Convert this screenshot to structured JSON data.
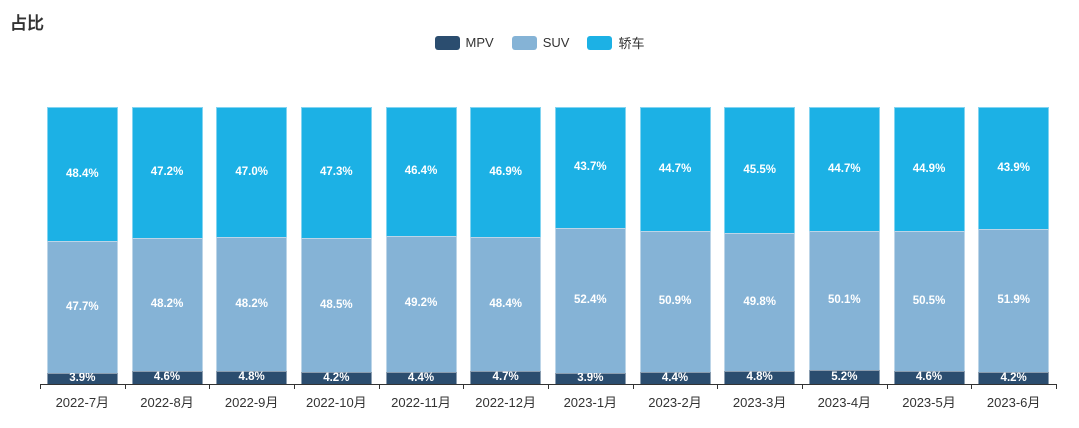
{
  "title": "占比",
  "legend": {
    "items": [
      {
        "label": "MPV",
        "color": "#2b4d6f"
      },
      {
        "label": "SUV",
        "color": "#85b3d6"
      },
      {
        "label": "轿车",
        "color": "#1cb1e5"
      }
    ]
  },
  "chart_data": {
    "type": "bar",
    "stacked": true,
    "title": "占比",
    "categories": [
      "2022-7月",
      "2022-8月",
      "2022-9月",
      "2022-10月",
      "2022-11月",
      "2022-12月",
      "2023-1月",
      "2023-2月",
      "2023-3月",
      "2023-4月",
      "2023-5月",
      "2023-6月"
    ],
    "series": [
      {
        "name": "MPV",
        "color": "#2b4d6f",
        "values": [
          3.9,
          4.6,
          4.8,
          4.2,
          4.4,
          4.7,
          3.9,
          4.4,
          4.8,
          5.2,
          4.6,
          4.2
        ]
      },
      {
        "name": "SUV",
        "color": "#85b3d6",
        "values": [
          47.7,
          48.2,
          48.2,
          48.5,
          49.2,
          48.4,
          52.4,
          50.9,
          49.8,
          50.1,
          50.5,
          51.9
        ]
      },
      {
        "name": "轿车",
        "color": "#1cb1e5",
        "values": [
          48.4,
          47.2,
          47.0,
          47.3,
          46.4,
          46.9,
          43.7,
          44.7,
          45.5,
          44.7,
          44.9,
          43.9
        ]
      }
    ],
    "value_format": "percent_one_decimal",
    "label_suffix": "%",
    "ylim": [
      0,
      100
    ],
    "grid": false,
    "legend_position": "top-center",
    "axis_color": "#333333",
    "segment_label_color": "#ffffff",
    "axis_label_color": "#333333"
  }
}
